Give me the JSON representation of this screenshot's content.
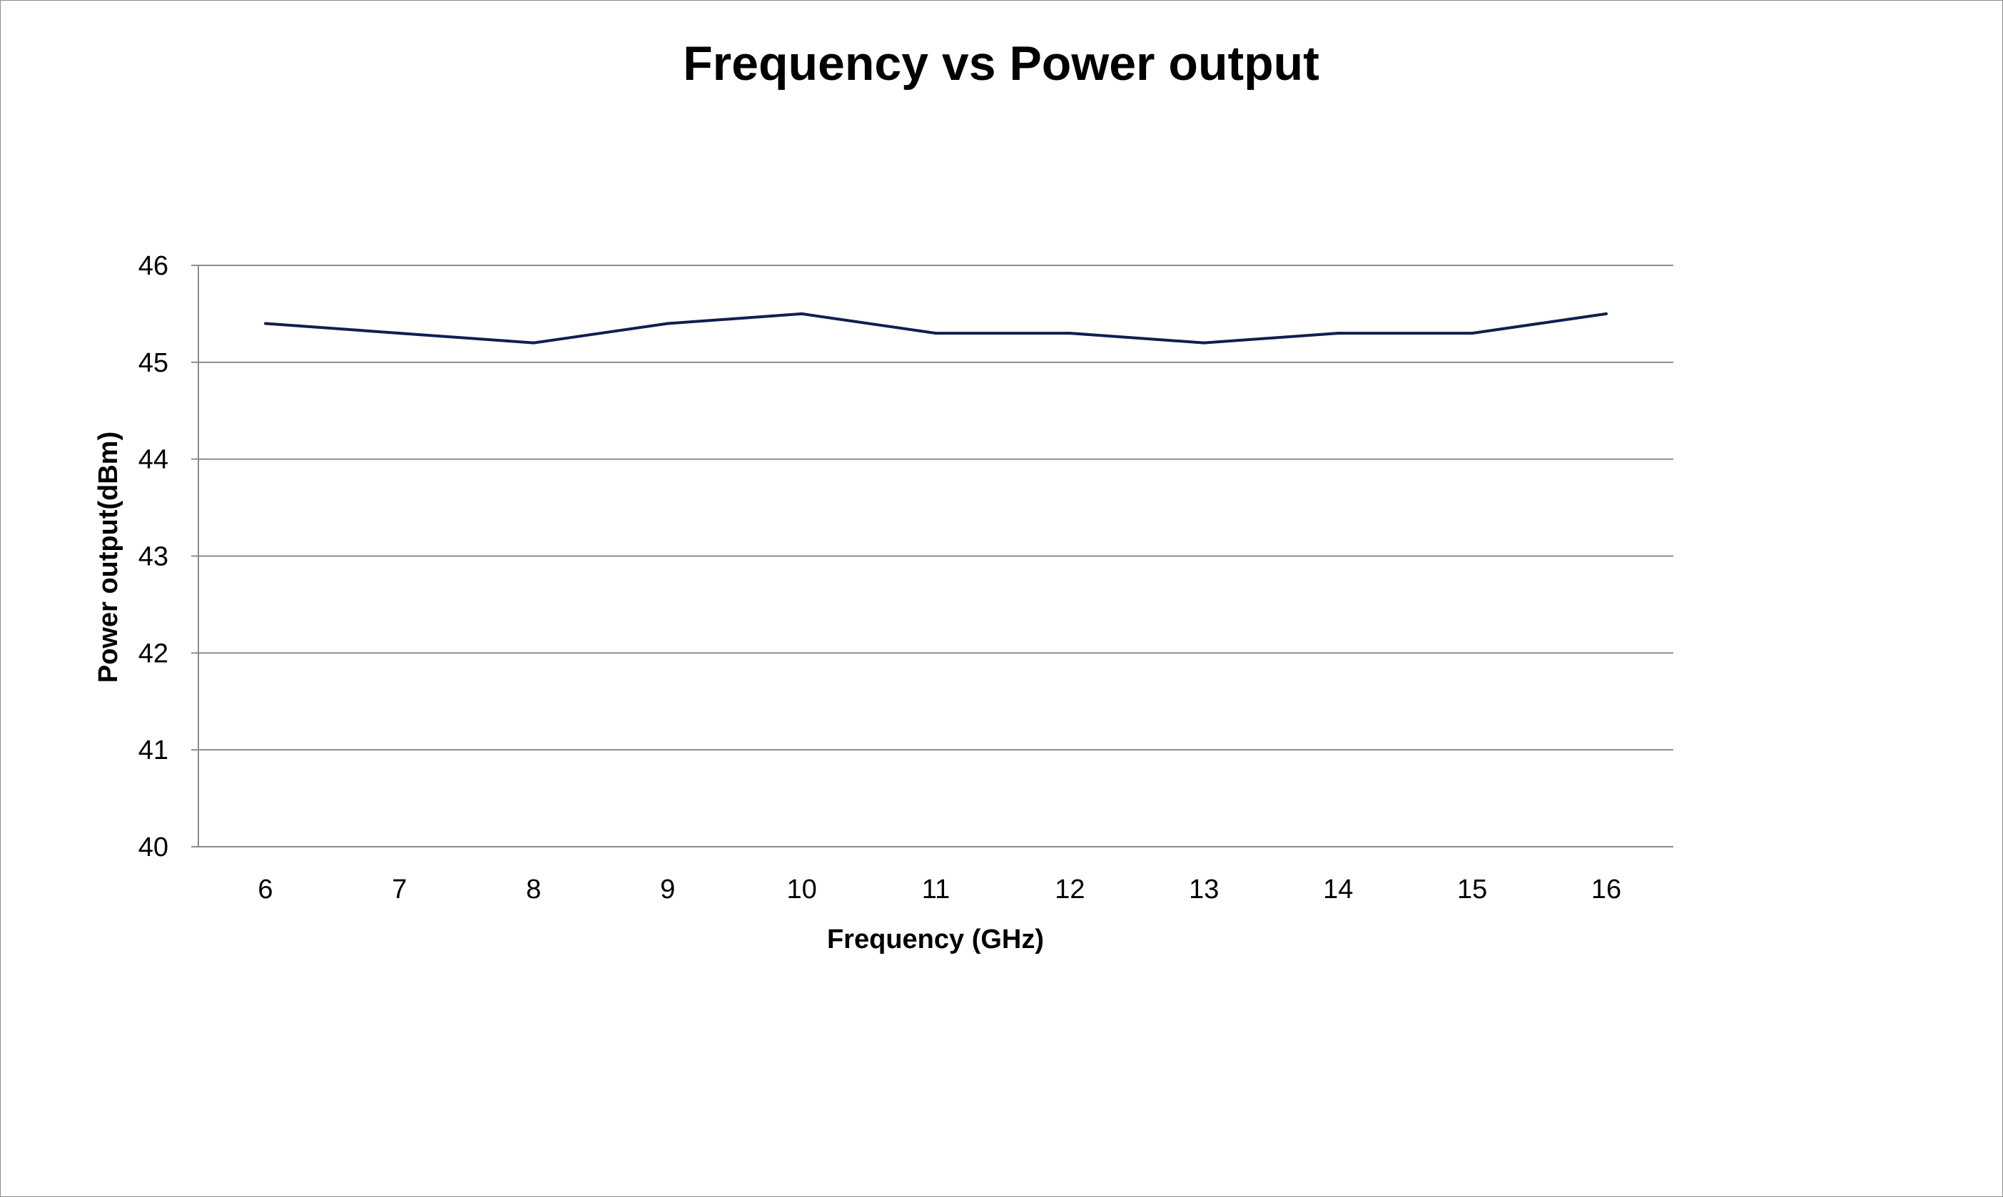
{
  "chart_data": {
    "type": "line",
    "title": "Frequency vs Power output",
    "xlabel": "Frequency (GHz)",
    "ylabel": "Power output(dBm)",
    "x": [
      6,
      7,
      8,
      9,
      10,
      11,
      12,
      13,
      14,
      15,
      16
    ],
    "series": [
      {
        "values": [
          45.4,
          45.3,
          45.2,
          45.4,
          45.5,
          45.3,
          45.3,
          45.2,
          45.3,
          45.3,
          45.5
        ]
      }
    ],
    "ylim": [
      40,
      46
    ],
    "yticks": [
      40,
      41,
      42,
      43,
      44,
      45,
      46
    ],
    "xticks": [
      6,
      7,
      8,
      9,
      10,
      11,
      12,
      13,
      14,
      15,
      16
    ],
    "grid": "horizontal",
    "legend": "none",
    "line_color": "#0f1f4f",
    "grid_color": "#8c8c8c"
  }
}
